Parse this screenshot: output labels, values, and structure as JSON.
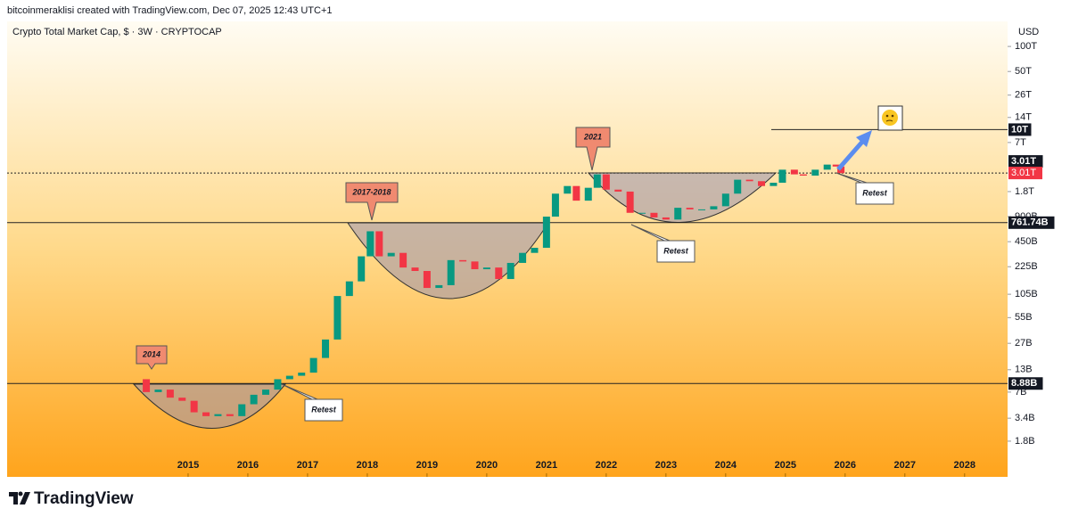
{
  "header": "bitcoinmeraklisi created with TradingView.com, Dec 07, 2025 12:43 UTC+1",
  "footer": "TradingView",
  "chart_data": {
    "type": "candlestick",
    "title": "Crypto Total Market Cap, $ · 3W · CRYPTOCAP",
    "currency": "USD",
    "log_scale": true,
    "x": [
      2014.1,
      2014.3,
      2014.5,
      2014.7,
      2014.9,
      2015.1,
      2015.3,
      2015.5,
      2015.7,
      2015.9,
      2016.1,
      2016.3,
      2016.5,
      2016.7,
      2016.9,
      2017.1,
      2017.3,
      2017.5,
      2017.7,
      2017.9,
      2018.05,
      2018.2,
      2018.4,
      2018.6,
      2018.8,
      2019.0,
      2019.2,
      2019.4,
      2019.6,
      2019.8,
      2020.0,
      2020.2,
      2020.4,
      2020.6,
      2020.8,
      2021.0,
      2021.15,
      2021.35,
      2021.5,
      2021.7,
      2021.85,
      2022.0,
      2022.2,
      2022.4,
      2022.6,
      2022.8,
      2023.0,
      2023.2,
      2023.4,
      2023.6,
      2023.8,
      2024.0,
      2024.2,
      2024.4,
      2024.6,
      2024.8,
      2024.95,
      2025.15,
      2025.3,
      2025.5,
      2025.7,
      2025.85,
      2025.93
    ],
    "series": [
      {
        "name": "Total Market Cap",
        "up_color": "#089981",
        "down_color": "#f23645",
        "values": [
          10000000000,
          7000000000,
          7500000000,
          6000000000,
          5500000000,
          4000000000,
          3600000000,
          3800000000,
          3600000000,
          5000000000,
          6500000000,
          7500000000,
          10000000000,
          11000000000,
          12000000000,
          18000000000,
          30000000000,
          100000000000,
          150000000000,
          300000000000,
          600000000000,
          300000000000,
          330000000000,
          220000000000,
          200000000000,
          125000000000,
          135000000000,
          270000000000,
          260000000000,
          210000000000,
          220000000000,
          160000000000,
          250000000000,
          330000000000,
          380000000000,
          900000000000,
          1700000000000,
          2100000000000,
          1400000000000,
          2000000000000,
          2900000000000,
          1900000000000,
          1800000000000,
          1000000000000,
          1000000000000,
          880000000000,
          830000000000,
          1150000000000,
          1100000000000,
          1100000000000,
          1200000000000,
          1700000000000,
          2500000000000,
          2400000000000,
          2100000000000,
          2300000000000,
          3300000000000,
          2900000000000,
          2800000000000,
          3300000000000,
          3800000000000,
          3600000000000,
          3000000000000
        ]
      }
    ],
    "xlim": [
      2011.97,
      2028.72
    ],
    "xticks": [
      2015,
      2016,
      2017,
      2018,
      2019,
      2020,
      2021,
      2022,
      2023,
      2024,
      2025,
      2026,
      2027,
      2028
    ],
    "ylim": [
      670000000,
      200000000000000
    ],
    "yticks": [
      {
        "value": 100000000000000,
        "label": "100T"
      },
      {
        "value": 50000000000000,
        "label": "50T"
      },
      {
        "value": 26000000000000,
        "label": "26T"
      },
      {
        "value": 14000000000000,
        "label": "14T"
      },
      {
        "value": 7000000000000,
        "label": "7T"
      },
      {
        "value": 1800000000000,
        "label": "1.8T"
      },
      {
        "value": 900000000000,
        "label": "900B"
      },
      {
        "value": 450000000000,
        "label": "450B"
      },
      {
        "value": 225000000000,
        "label": "225B"
      },
      {
        "value": 105000000000,
        "label": "105B"
      },
      {
        "value": 55000000000,
        "label": "55B"
      },
      {
        "value": 27000000000,
        "label": "27B"
      },
      {
        "value": 13000000000,
        "label": "13B"
      },
      {
        "value": 7000000000,
        "label": "7B"
      },
      {
        "value": 3400000000,
        "label": "3.4B"
      },
      {
        "value": 1800000000,
        "label": "1.8B"
      }
    ],
    "levels": [
      {
        "value": 10000000000000,
        "label": "10T"
      },
      {
        "value": 3010000000000,
        "label": "3.01T"
      },
      {
        "value": 761740000000,
        "label": "761.74B"
      },
      {
        "value": 8880000000,
        "label": "8.88B"
      }
    ],
    "last_price": {
      "value": 3010000000000,
      "label": "3.01T"
    },
    "annotations": [
      "2014",
      "2017-2018",
      "2021",
      "Retest",
      "Retest",
      "Retest"
    ]
  }
}
